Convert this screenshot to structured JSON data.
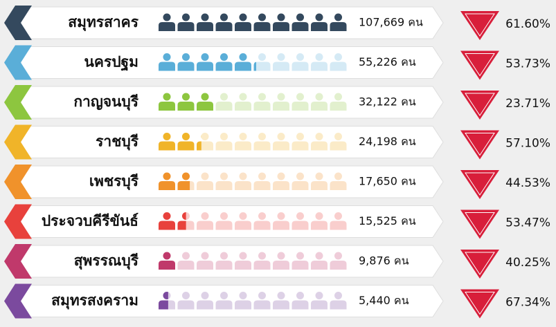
{
  "chart_data": {
    "type": "pictograph",
    "categories": [
      "สมุทรสาคร",
      "นครปฐม",
      "กาญจนบุรี",
      "ราชบุรี",
      "เพชรบุรี",
      "ประจวบคีรีขันธ์",
      "สุพรรณบุรี",
      "สมุทรสงคราม"
    ],
    "colors": [
      "#34495e",
      "#5aaed8",
      "#8dc63f",
      "#f0b429",
      "#f0922b",
      "#e8413c",
      "#c0396b",
      "#7b4a9e"
    ],
    "series": [
      {
        "values": [
          107669,
          55226,
          32122,
          24198,
          17650,
          15525,
          9876,
          5440
        ],
        "value_labels": [
          "107,669 คน",
          "55,226 คน",
          "32,122 คน",
          "24,198 คน",
          "17,650 คน",
          "15,525 คน",
          "9,876 คน",
          "5,440 คน"
        ]
      },
      {
        "values": [
          61.6,
          53.73,
          23.71,
          57.1,
          44.53,
          53.47,
          40.25,
          67.34
        ],
        "value_labels": [
          "61.60%",
          "53.73%",
          "23.71%",
          "57.10%",
          "44.53%",
          "53.47%",
          "40.25%",
          "67.34%"
        ],
        "color": "#d81e3a"
      }
    ]
  }
}
